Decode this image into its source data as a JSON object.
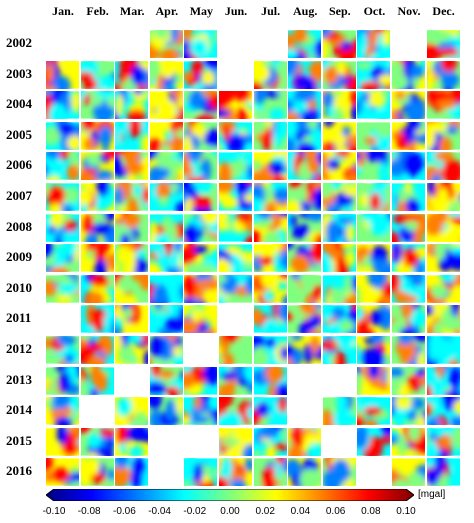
{
  "chart_data": {
    "type": "heatmap",
    "months": [
      "Jan.",
      "Feb.",
      "Mar.",
      "Apr.",
      "May",
      "Jun.",
      "Jul.",
      "Aug.",
      "Sep.",
      "Oct.",
      "Nov.",
      "Dec."
    ],
    "years": [
      "2002",
      "2003",
      "2004",
      "2005",
      "2006",
      "2007",
      "2008",
      "2009",
      "2010",
      "2011",
      "2012",
      "2013",
      "2014",
      "2015",
      "2016"
    ],
    "availability": [
      [
        0,
        0,
        0,
        1,
        1,
        0,
        0,
        1,
        1,
        1,
        0,
        1
      ],
      [
        1,
        1,
        1,
        1,
        1,
        0,
        1,
        1,
        1,
        1,
        1,
        1
      ],
      [
        1,
        1,
        1,
        1,
        1,
        1,
        1,
        1,
        1,
        1,
        1,
        1
      ],
      [
        1,
        1,
        1,
        1,
        1,
        1,
        1,
        1,
        1,
        1,
        1,
        1
      ],
      [
        1,
        1,
        1,
        1,
        1,
        1,
        1,
        1,
        1,
        1,
        1,
        1
      ],
      [
        1,
        1,
        1,
        1,
        1,
        1,
        1,
        1,
        1,
        1,
        1,
        1
      ],
      [
        1,
        1,
        1,
        1,
        1,
        1,
        1,
        1,
        1,
        1,
        1,
        1
      ],
      [
        1,
        1,
        1,
        1,
        1,
        1,
        1,
        1,
        1,
        1,
        1,
        1
      ],
      [
        1,
        1,
        1,
        1,
        1,
        1,
        1,
        1,
        1,
        1,
        1,
        1
      ],
      [
        0,
        1,
        1,
        1,
        1,
        0,
        1,
        1,
        1,
        1,
        1,
        1
      ],
      [
        1,
        1,
        1,
        1,
        0,
        1,
        1,
        1,
        1,
        1,
        1,
        1
      ],
      [
        1,
        1,
        0,
        1,
        1,
        1,
        1,
        0,
        0,
        1,
        1,
        1
      ],
      [
        1,
        0,
        1,
        1,
        1,
        1,
        1,
        0,
        1,
        1,
        1,
        1
      ],
      [
        1,
        1,
        1,
        0,
        0,
        1,
        1,
        1,
        0,
        1,
        1,
        1
      ],
      [
        1,
        1,
        1,
        0,
        1,
        1,
        1,
        1,
        1,
        0,
        1,
        1
      ]
    ],
    "colorbar": {
      "unit": "[mgal]",
      "min": -0.1,
      "max": 0.1,
      "ticks": [
        "-0.10",
        "-0.08",
        "-0.06",
        "-0.04",
        "-0.02",
        "0.00",
        "0.02",
        "0.04",
        "0.06",
        "0.08",
        "0.10"
      ],
      "colormap": [
        "#00007f",
        "#0000ff",
        "#007fff",
        "#00ffff",
        "#7fff7f",
        "#ffff00",
        "#ff7f00",
        "#ff0000",
        "#7f0000"
      ]
    }
  }
}
